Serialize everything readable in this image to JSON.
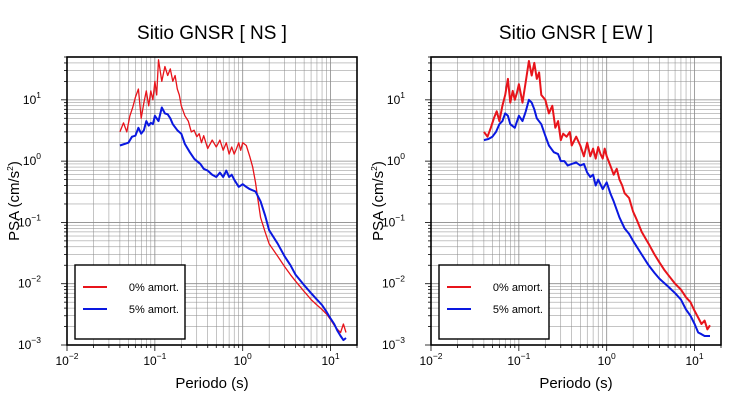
{
  "chart_data": [
    {
      "type": "line",
      "title": "Sitio GNSR [ NS ]",
      "xlabel": "Periodo (s)",
      "ylabel_main": "PSA (cm/s",
      "ylabel_sup": "2",
      "ylabel_close": ")",
      "xscale": "log",
      "yscale": "log",
      "xlim": [
        0.01,
        20
      ],
      "ylim": [
        0.001,
        50
      ],
      "grid": true,
      "legend_position": "bottom-left",
      "x_ticks": [
        {
          "base": "10",
          "exp": "−2",
          "value": 0.01
        },
        {
          "base": "10",
          "exp": "−1",
          "value": 0.1
        },
        {
          "base": "10",
          "exp": "0",
          "value": 1
        },
        {
          "base": "10",
          "exp": "1",
          "value": 10
        }
      ],
      "y_ticks": [
        {
          "base": "10",
          "exp": "−3",
          "value": 0.001
        },
        {
          "base": "10",
          "exp": "−2",
          "value": 0.01
        },
        {
          "base": "10",
          "exp": "−1",
          "value": 0.1
        },
        {
          "base": "10",
          "exp": "0",
          "value": 1
        },
        {
          "base": "10",
          "exp": "1",
          "value": 10
        }
      ],
      "series": [
        {
          "name": "0% amort.",
          "color": "#e8141b",
          "width": 1.3,
          "x": [
            0.04,
            0.044,
            0.048,
            0.052,
            0.056,
            0.06,
            0.065,
            0.07,
            0.075,
            0.08,
            0.085,
            0.09,
            0.095,
            0.1,
            0.105,
            0.11,
            0.12,
            0.13,
            0.14,
            0.15,
            0.16,
            0.17,
            0.18,
            0.19,
            0.2,
            0.22,
            0.24,
            0.26,
            0.28,
            0.3,
            0.32,
            0.34,
            0.36,
            0.4,
            0.45,
            0.5,
            0.55,
            0.6,
            0.65,
            0.7,
            0.75,
            0.8,
            0.85,
            0.9,
            0.95,
            1.0,
            1.1,
            1.2,
            1.3,
            1.4,
            1.5,
            1.6,
            1.8,
            2.0,
            2.5,
            3.0,
            3.5,
            4.0,
            5.0,
            6.0,
            7.0,
            8.0,
            9.0,
            10,
            11,
            12,
            13,
            14,
            15
          ],
          "y": [
            3.0,
            4.2,
            3.0,
            5.5,
            7.5,
            11,
            15,
            5,
            9,
            14,
            8,
            14,
            10,
            20,
            12,
            45,
            20,
            35,
            25,
            32,
            20,
            25,
            15,
            12,
            8,
            5.5,
            4.5,
            3,
            3.2,
            2.5,
            2.8,
            2,
            2.6,
            1.6,
            2.2,
            1.7,
            2.2,
            1.5,
            2.0,
            1.3,
            1.7,
            1.3,
            1.6,
            2.0,
            1.5,
            2.0,
            1.8,
            1.2,
            0.8,
            0.45,
            0.22,
            0.12,
            0.07,
            0.045,
            0.028,
            0.019,
            0.014,
            0.011,
            0.0075,
            0.0055,
            0.0045,
            0.0038,
            0.0032,
            0.0026,
            0.0021,
            0.0018,
            0.0016,
            0.0022,
            0.0016
          ]
        },
        {
          "name": "5% amort.",
          "color": "#0a18e0",
          "width": 2.0,
          "x": [
            0.04,
            0.045,
            0.05,
            0.055,
            0.06,
            0.065,
            0.07,
            0.075,
            0.08,
            0.085,
            0.09,
            0.095,
            0.1,
            0.11,
            0.12,
            0.13,
            0.14,
            0.15,
            0.16,
            0.18,
            0.2,
            0.22,
            0.25,
            0.28,
            0.3,
            0.33,
            0.36,
            0.4,
            0.45,
            0.5,
            0.55,
            0.6,
            0.65,
            0.7,
            0.75,
            0.8,
            0.9,
            1.0,
            1.1,
            1.2,
            1.4,
            1.6,
            1.8,
            2.0,
            2.5,
            3.0,
            3.5,
            4.0,
            5.0,
            6.0,
            7.0,
            8.0,
            9.0,
            10,
            11,
            12,
            13,
            14,
            15
          ],
          "y": [
            1.8,
            1.9,
            2.0,
            2.5,
            2.6,
            3.5,
            2.8,
            3.2,
            4.5,
            3.8,
            4.2,
            4.0,
            5.5,
            4.5,
            7.5,
            6.0,
            5.8,
            5.0,
            4.0,
            3.2,
            2.8,
            1.9,
            1.4,
            1.1,
            1.0,
            0.9,
            0.75,
            0.7,
            0.6,
            0.55,
            0.65,
            0.55,
            0.7,
            0.55,
            0.6,
            0.5,
            0.38,
            0.42,
            0.38,
            0.35,
            0.32,
            0.22,
            0.13,
            0.075,
            0.045,
            0.028,
            0.02,
            0.014,
            0.0095,
            0.007,
            0.0055,
            0.0045,
            0.0035,
            0.0027,
            0.0022,
            0.0017,
            0.0014,
            0.0012,
            0.0013
          ]
        }
      ]
    },
    {
      "type": "line",
      "title": "Sitio GNSR [ EW ]",
      "xlabel": "Periodo (s)",
      "ylabel_main": "PSA (cm/s",
      "ylabel_sup": "2",
      "ylabel_close": ")",
      "xscale": "log",
      "yscale": "log",
      "xlim": [
        0.01,
        20
      ],
      "ylim": [
        0.001,
        50
      ],
      "grid": true,
      "legend_position": "bottom-left",
      "x_ticks": [
        {
          "base": "10",
          "exp": "−2",
          "value": 0.01
        },
        {
          "base": "10",
          "exp": "−1",
          "value": 0.1
        },
        {
          "base": "10",
          "exp": "0",
          "value": 1
        },
        {
          "base": "10",
          "exp": "1",
          "value": 10
        }
      ],
      "y_ticks": [
        {
          "base": "10",
          "exp": "−3",
          "value": 0.001
        },
        {
          "base": "10",
          "exp": "−2",
          "value": 0.01
        },
        {
          "base": "10",
          "exp": "−1",
          "value": 0.1
        },
        {
          "base": "10",
          "exp": "0",
          "value": 1
        },
        {
          "base": "10",
          "exp": "1",
          "value": 10
        }
      ],
      "series": [
        {
          "name": "0% amort.",
          "color": "#e8141b",
          "width": 2.0,
          "x": [
            0.04,
            0.044,
            0.048,
            0.052,
            0.056,
            0.06,
            0.065,
            0.07,
            0.075,
            0.08,
            0.085,
            0.09,
            0.095,
            0.1,
            0.11,
            0.12,
            0.13,
            0.14,
            0.15,
            0.16,
            0.17,
            0.18,
            0.2,
            0.22,
            0.24,
            0.26,
            0.28,
            0.3,
            0.32,
            0.35,
            0.38,
            0.4,
            0.45,
            0.5,
            0.55,
            0.6,
            0.65,
            0.7,
            0.75,
            0.8,
            0.85,
            0.9,
            0.95,
            1.0,
            1.1,
            1.2,
            1.3,
            1.4,
            1.5,
            1.6,
            1.8,
            2.0,
            2.2,
            2.5,
            3.0,
            3.5,
            4.0,
            4.5,
            5.0,
            6.0,
            7.0,
            8.0,
            9.0,
            10,
            11,
            12,
            13,
            14,
            15
          ],
          "y": [
            3.0,
            2.5,
            3.5,
            5.0,
            6.5,
            4.5,
            8.0,
            12,
            22,
            9,
            14,
            10,
            13,
            18,
            9,
            20,
            43,
            25,
            40,
            22,
            28,
            12,
            10,
            6,
            8,
            3.5,
            4.5,
            2.2,
            2.8,
            2.5,
            3.0,
            1.8,
            2.5,
            1.8,
            1.2,
            2.0,
            1.2,
            1.6,
            1.1,
            1.7,
            1.3,
            1.1,
            1.6,
            1.2,
            0.85,
            0.6,
            0.75,
            0.5,
            0.4,
            0.3,
            0.25,
            0.15,
            0.11,
            0.07,
            0.045,
            0.03,
            0.022,
            0.017,
            0.014,
            0.01,
            0.008,
            0.006,
            0.005,
            0.0036,
            0.0028,
            0.0022,
            0.0025,
            0.0018,
            0.0021
          ]
        },
        {
          "name": "5% amort.",
          "color": "#0a18e0",
          "width": 2.0,
          "x": [
            0.04,
            0.045,
            0.05,
            0.055,
            0.06,
            0.065,
            0.07,
            0.075,
            0.08,
            0.09,
            0.1,
            0.11,
            0.12,
            0.13,
            0.14,
            0.15,
            0.16,
            0.18,
            0.2,
            0.22,
            0.25,
            0.28,
            0.3,
            0.33,
            0.36,
            0.4,
            0.45,
            0.5,
            0.55,
            0.6,
            0.65,
            0.7,
            0.75,
            0.8,
            0.9,
            1.0,
            1.1,
            1.2,
            1.4,
            1.6,
            1.8,
            2.0,
            2.5,
            3.0,
            3.5,
            4.0,
            5.0,
            6.0,
            7.0,
            8.0,
            9.0,
            10,
            11,
            12,
            13,
            14,
            15
          ],
          "y": [
            2.2,
            2.3,
            2.5,
            3.0,
            4.0,
            4.5,
            6.0,
            5.5,
            4.0,
            3.5,
            5.5,
            4.5,
            6.5,
            10,
            9,
            7,
            5,
            4,
            2.6,
            1.8,
            1.4,
            1.3,
            1.0,
            1.0,
            0.85,
            0.9,
            0.95,
            0.85,
            0.9,
            0.65,
            0.55,
            0.6,
            0.4,
            0.5,
            0.35,
            0.45,
            0.3,
            0.22,
            0.12,
            0.08,
            0.065,
            0.05,
            0.03,
            0.02,
            0.015,
            0.012,
            0.009,
            0.007,
            0.0055,
            0.0038,
            0.003,
            0.0022,
            0.0016,
            0.0015,
            0.0014,
            0.0014,
            0.0014
          ]
        }
      ]
    }
  ]
}
